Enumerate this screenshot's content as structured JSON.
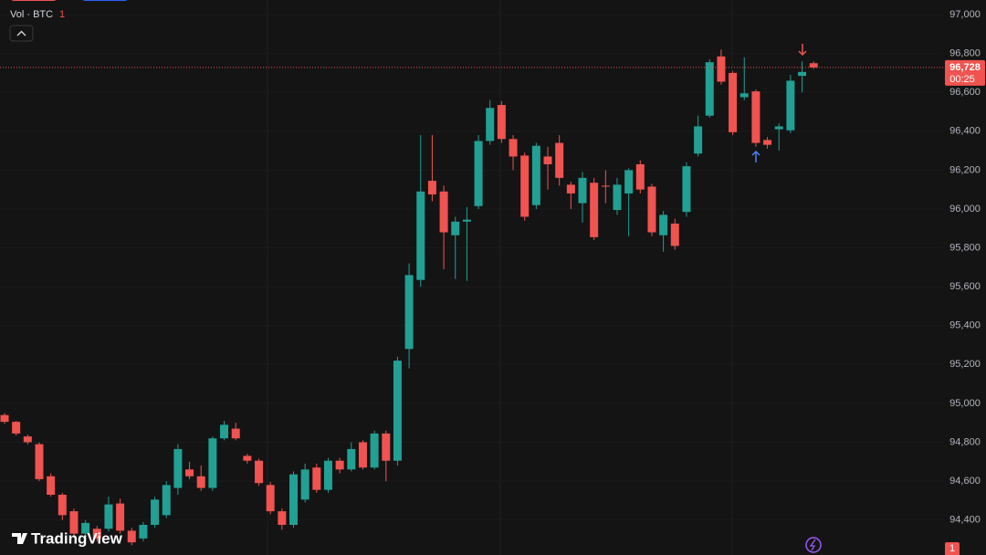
{
  "chart_data": {
    "type": "candlestick",
    "indicator": {
      "name": "Vol · BTC",
      "value": 1
    },
    "categories": [
      null,
      null,
      null,
      null,
      null,
      null,
      null,
      null,
      null,
      null,
      null,
      null,
      null,
      null,
      null,
      null,
      null,
      null,
      null,
      null,
      null,
      null,
      null,
      null,
      null,
      null,
      null,
      null,
      null,
      null,
      null,
      null,
      null,
      null,
      null,
      null,
      null,
      null,
      null,
      null,
      null,
      null,
      null,
      null,
      null,
      null,
      null,
      null,
      null,
      null,
      null,
      null,
      null,
      null,
      null,
      null,
      null,
      null,
      null,
      null,
      null,
      null,
      null,
      null,
      null,
      null,
      null,
      null,
      null,
      null,
      null
    ],
    "open": [
      94940,
      94905,
      94830,
      94790,
      94625,
      94530,
      94445,
      94330,
      94355,
      94355,
      94485,
      94345,
      94305,
      94375,
      94425,
      94565,
      94660,
      94625,
      94565,
      94820,
      94870,
      94730,
      94705,
      94580,
      94445,
      94375,
      94505,
      94670,
      94555,
      94705,
      94660,
      94800,
      94670,
      94845,
      94705,
      95280,
      95635,
      96145,
      96090,
      95865,
      95935,
      96015,
      96350,
      96535,
      96360,
      96275,
      96020,
      96270,
      96340,
      96125,
      96030,
      96135,
      96120,
      95995,
      96080,
      96230,
      96115,
      95865,
      95925,
      95985,
      96285,
      96480,
      96785,
      96700,
      96575,
      96605,
      96355,
      96410,
      96405,
      96685,
      96750
    ],
    "high": [
      94950,
      94910,
      94840,
      94800,
      94640,
      94540,
      94460,
      94400,
      94370,
      94520,
      94510,
      94360,
      94390,
      94520,
      94600,
      94790,
      94700,
      94680,
      94830,
      94910,
      94900,
      94740,
      94715,
      94595,
      94460,
      94650,
      94690,
      94690,
      94720,
      94720,
      94800,
      94810,
      94860,
      94860,
      95240,
      95720,
      96380,
      96380,
      96120,
      95960,
      96010,
      96380,
      96560,
      96555,
      96380,
      96290,
      96340,
      96320,
      96380,
      96140,
      96190,
      96160,
      96200,
      96160,
      96210,
      96250,
      96130,
      95990,
      95950,
      96240,
      96480,
      96770,
      96820,
      96710,
      96780,
      96615,
      96370,
      96440,
      96690,
      96760,
      96760
    ],
    "low": [
      94895,
      94835,
      94790,
      94600,
      94520,
      94400,
      94310,
      94300,
      94290,
      94340,
      94330,
      94270,
      94290,
      94360,
      94410,
      94530,
      94610,
      94550,
      94550,
      94810,
      94810,
      94690,
      94575,
      94430,
      94350,
      94360,
      94490,
      94540,
      94540,
      94640,
      94650,
      94660,
      94660,
      94600,
      94680,
      95180,
      95600,
      96040,
      95690,
      95640,
      95630,
      96000,
      96330,
      96340,
      96200,
      95940,
      96000,
      96100,
      96120,
      96000,
      95930,
      95840,
      96030,
      95970,
      95860,
      96080,
      95860,
      95780,
      95790,
      95960,
      96270,
      96470,
      96640,
      96380,
      96560,
      96320,
      96310,
      96300,
      96390,
      96600,
      96720
    ],
    "close": [
      94905,
      94845,
      94800,
      94610,
      94530,
      94425,
      94330,
      94385,
      94305,
      94480,
      94345,
      94285,
      94375,
      94505,
      94580,
      94765,
      94625,
      94565,
      94820,
      94890,
      94820,
      94705,
      94590,
      94445,
      94375,
      94635,
      94660,
      94555,
      94705,
      94660,
      94765,
      94670,
      94845,
      94705,
      95220,
      95660,
      96090,
      96075,
      95880,
      95935,
      95945,
      96350,
      96520,
      96360,
      96270,
      95960,
      96325,
      96230,
      96160,
      96080,
      96160,
      95855,
      96115,
      96125,
      96200,
      96100,
      95880,
      95970,
      95810,
      96220,
      96425,
      96755,
      96655,
      96395,
      96595,
      96340,
      96330,
      96425,
      96660,
      96705,
      96728
    ],
    "up_color": "#22a094",
    "down_color": "#f05350",
    "ylim": [
      94220,
      97000
    ],
    "yticks": [
      {
        "value": 94400,
        "label": "94,400"
      },
      {
        "value": 94600,
        "label": "94,600"
      },
      {
        "value": 94800,
        "label": "94,800"
      },
      {
        "value": 95000,
        "label": "95,000"
      },
      {
        "value": 95200,
        "label": "95,200"
      },
      {
        "value": 95400,
        "label": "95,400"
      },
      {
        "value": 95600,
        "label": "95,600"
      },
      {
        "value": 95800,
        "label": "95,800"
      },
      {
        "value": 96000,
        "label": "96,000"
      },
      {
        "value": 96200,
        "label": "96,200"
      },
      {
        "value": 96400,
        "label": "96,400"
      },
      {
        "value": 96600,
        "label": "96,600"
      },
      {
        "value": 96800,
        "label": "96,800"
      },
      {
        "value": 97000,
        "label": "97,000"
      }
    ],
    "last_price": {
      "value": 96728,
      "label": "96,728"
    },
    "countdown": "00:25",
    "brand": "TradingView",
    "badge": 1
  }
}
